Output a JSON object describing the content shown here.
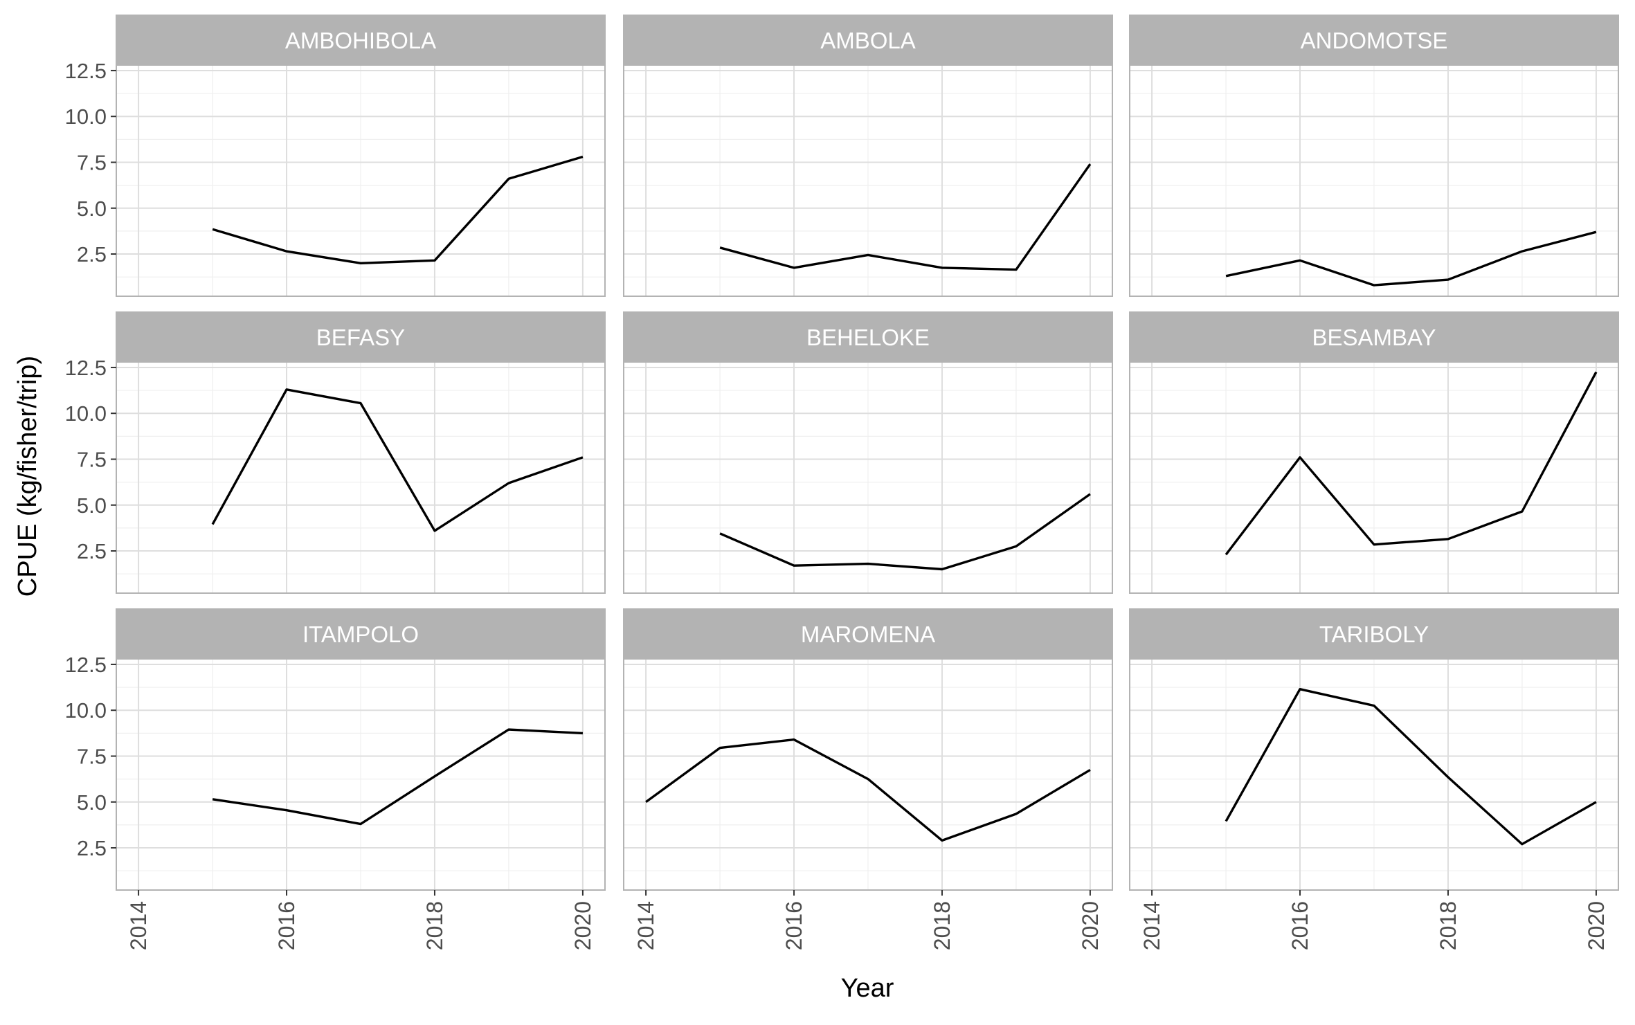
{
  "chart_data": {
    "type": "line",
    "layout": "facet-grid 3x3",
    "xlabel": "Year",
    "ylabel": "CPUE (kg/fisher/trip)",
    "xlim": [
      2013.7,
      2020.3
    ],
    "ylim": [
      0.2,
      12.8
    ],
    "x_ticks": [
      2014,
      2016,
      2018,
      2020
    ],
    "y_ticks": [
      2.5,
      5.0,
      7.5,
      10.0,
      12.5
    ],
    "y_tick_labels": [
      "2.5",
      "5.0",
      "7.5",
      "10.0",
      "12.5"
    ],
    "grid": true,
    "theme": "light",
    "colors": {
      "line": "#000000",
      "strip_bg": "#b3b3b3",
      "strip_text": "#ffffff",
      "panel_border": "#b3b3b3",
      "grid_major": "#dedede",
      "grid_minor": "#efefef",
      "axis_text": "#4d4d4d",
      "title_text": "#000000"
    },
    "panels": [
      {
        "name": "AMBOHIBOLA",
        "x": [
          2015,
          2016,
          2017,
          2018,
          2019,
          2020
        ],
        "y": [
          3.85,
          2.65,
          2.0,
          2.15,
          6.6,
          7.8
        ]
      },
      {
        "name": "AMBOLA",
        "x": [
          2015,
          2016,
          2017,
          2018,
          2019,
          2020
        ],
        "y": [
          2.85,
          1.75,
          2.45,
          1.75,
          1.65,
          7.4
        ]
      },
      {
        "name": "ANDOMOTSE",
        "x": [
          2015,
          2016,
          2017,
          2018,
          2019,
          2020
        ],
        "y": [
          1.3,
          2.15,
          0.8,
          1.1,
          2.65,
          3.7
        ]
      },
      {
        "name": "BEFASY",
        "x": [
          2015,
          2016,
          2017,
          2018,
          2019,
          2020
        ],
        "y": [
          3.95,
          11.3,
          10.55,
          3.6,
          6.2,
          7.6
        ]
      },
      {
        "name": "BEHELOKE",
        "x": [
          2015,
          2016,
          2017,
          2018,
          2019,
          2020
        ],
        "y": [
          3.45,
          1.7,
          1.8,
          1.5,
          2.75,
          5.6
        ]
      },
      {
        "name": "BESAMBAY",
        "x": [
          2015,
          2016,
          2017,
          2018,
          2019,
          2020
        ],
        "y": [
          2.3,
          7.6,
          2.85,
          3.15,
          4.65,
          12.25
        ]
      },
      {
        "name": "ITAMPOLO",
        "x": [
          2015,
          2016,
          2017,
          2018,
          2019,
          2020
        ],
        "y": [
          5.15,
          4.55,
          3.8,
          6.4,
          8.95,
          8.75
        ]
      },
      {
        "name": "MAROMENA",
        "x": [
          2014,
          2015,
          2016,
          2017,
          2018,
          2019,
          2020
        ],
        "y": [
          5.0,
          7.95,
          8.4,
          6.25,
          2.9,
          4.35,
          6.75
        ]
      },
      {
        "name": "TARIBOLY",
        "x": [
          2015,
          2016,
          2017,
          2018,
          2019,
          2020
        ],
        "y": [
          3.95,
          11.15,
          10.25,
          6.35,
          2.7,
          5.0
        ]
      }
    ]
  }
}
